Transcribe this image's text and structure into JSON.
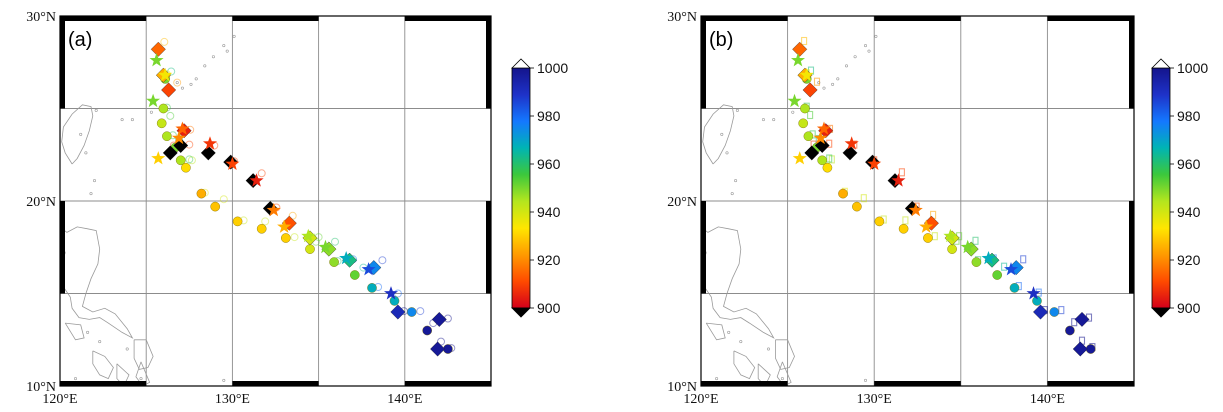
{
  "colors": {
    "coast": "#9a9a9a",
    "grid": "#8c8c8c",
    "frame": "#000000",
    "background": "#ffffff",
    "colormap": [
      "#000000",
      "#d4001a",
      "#ff4a00",
      "#ff9a00",
      "#ffe600",
      "#b4e61e",
      "#3cc83c",
      "#00b4b4",
      "#1478ff",
      "#1e32c8",
      "#14148c",
      "#ffffff"
    ]
  },
  "map": {
    "lon_ticks": [
      "120°E",
      "130°E",
      "140°E"
    ],
    "lat_ticks": [
      "10°N",
      "20°N",
      "30°N"
    ]
  },
  "panels": [
    {
      "label": "(a)",
      "mode": "a"
    },
    {
      "label": "(b)",
      "mode": "b"
    }
  ],
  "colorbar": {
    "ticks": [
      "900",
      "920",
      "940",
      "960",
      "980",
      "1000"
    ],
    "min": 900,
    "max": 1000
  },
  "chart_data": {
    "type": "scatter",
    "title": "",
    "xlabel": "",
    "ylabel": "",
    "xlim": [
      120,
      145
    ],
    "ylim": [
      10,
      30
    ],
    "grid": true,
    "x_ticks": [
      "120°E",
      "130°E",
      "140°E"
    ],
    "y_ticks": [
      "10°N",
      "20°N",
      "30°N"
    ],
    "colorbar": {
      "range": [
        900,
        1000
      ],
      "ticks": [
        900,
        920,
        940,
        960,
        980,
        1000
      ]
    },
    "series": [
      {
        "marker": "diamond",
        "points": [
          [
            142.0,
            13.6,
            998
          ],
          [
            141.9,
            12.0,
            998
          ],
          [
            139.6,
            14.0,
            992
          ],
          [
            138.2,
            16.4,
            975
          ],
          [
            136.8,
            16.8,
            962
          ],
          [
            135.6,
            17.4,
            948
          ],
          [
            134.5,
            18.0,
            940
          ],
          [
            133.3,
            18.8,
            912
          ],
          [
            132.2,
            19.6,
            898
          ],
          [
            131.2,
            21.1,
            898
          ],
          [
            129.9,
            22.1,
            898
          ],
          [
            128.6,
            22.6,
            898
          ],
          [
            127.0,
            23.0,
            898
          ],
          [
            126.4,
            22.6,
            898
          ],
          [
            127.2,
            23.8,
            905
          ],
          [
            126.3,
            26.0,
            910
          ],
          [
            126.0,
            26.8,
            925
          ],
          [
            125.7,
            28.2,
            915
          ]
        ]
      },
      {
        "marker": "star",
        "points": [
          [
            139.2,
            15.0,
            990
          ],
          [
            137.9,
            16.3,
            985
          ],
          [
            136.6,
            16.9,
            968
          ],
          [
            135.4,
            17.5,
            950
          ],
          [
            134.4,
            18.1,
            945
          ],
          [
            133.0,
            18.6,
            925
          ],
          [
            132.4,
            19.5,
            918
          ],
          [
            131.4,
            21.1,
            905
          ],
          [
            130.0,
            22.0,
            910
          ],
          [
            128.7,
            23.1,
            908
          ],
          [
            127.1,
            23.9,
            915
          ],
          [
            126.9,
            23.4,
            920
          ],
          [
            125.7,
            22.3,
            930
          ],
          [
            125.4,
            25.4,
            950
          ],
          [
            125.6,
            27.6,
            950
          ],
          [
            126.1,
            26.8,
            935
          ]
        ]
      },
      {
        "marker": "circle",
        "points": [
          [
            142.5,
            12.0,
            998
          ],
          [
            141.3,
            13.0,
            998
          ],
          [
            140.4,
            14.0,
            975
          ],
          [
            139.4,
            14.6,
            968
          ],
          [
            138.1,
            15.3,
            968
          ],
          [
            137.1,
            16.0,
            952
          ],
          [
            135.9,
            16.7,
            948
          ],
          [
            134.5,
            17.4,
            940
          ],
          [
            133.1,
            18.0,
            930
          ],
          [
            131.7,
            18.5,
            930
          ],
          [
            130.3,
            18.9,
            930
          ],
          [
            129.0,
            19.7,
            928
          ],
          [
            128.2,
            20.4,
            925
          ],
          [
            127.3,
            21.8,
            932
          ],
          [
            127.0,
            22.2,
            945
          ],
          [
            126.7,
            22.9,
            950
          ],
          [
            126.2,
            23.5,
            945
          ],
          [
            125.9,
            24.2,
            942
          ],
          [
            126.0,
            25.0,
            945
          ],
          [
            126.1,
            26.6,
            950
          ]
        ]
      }
    ]
  }
}
